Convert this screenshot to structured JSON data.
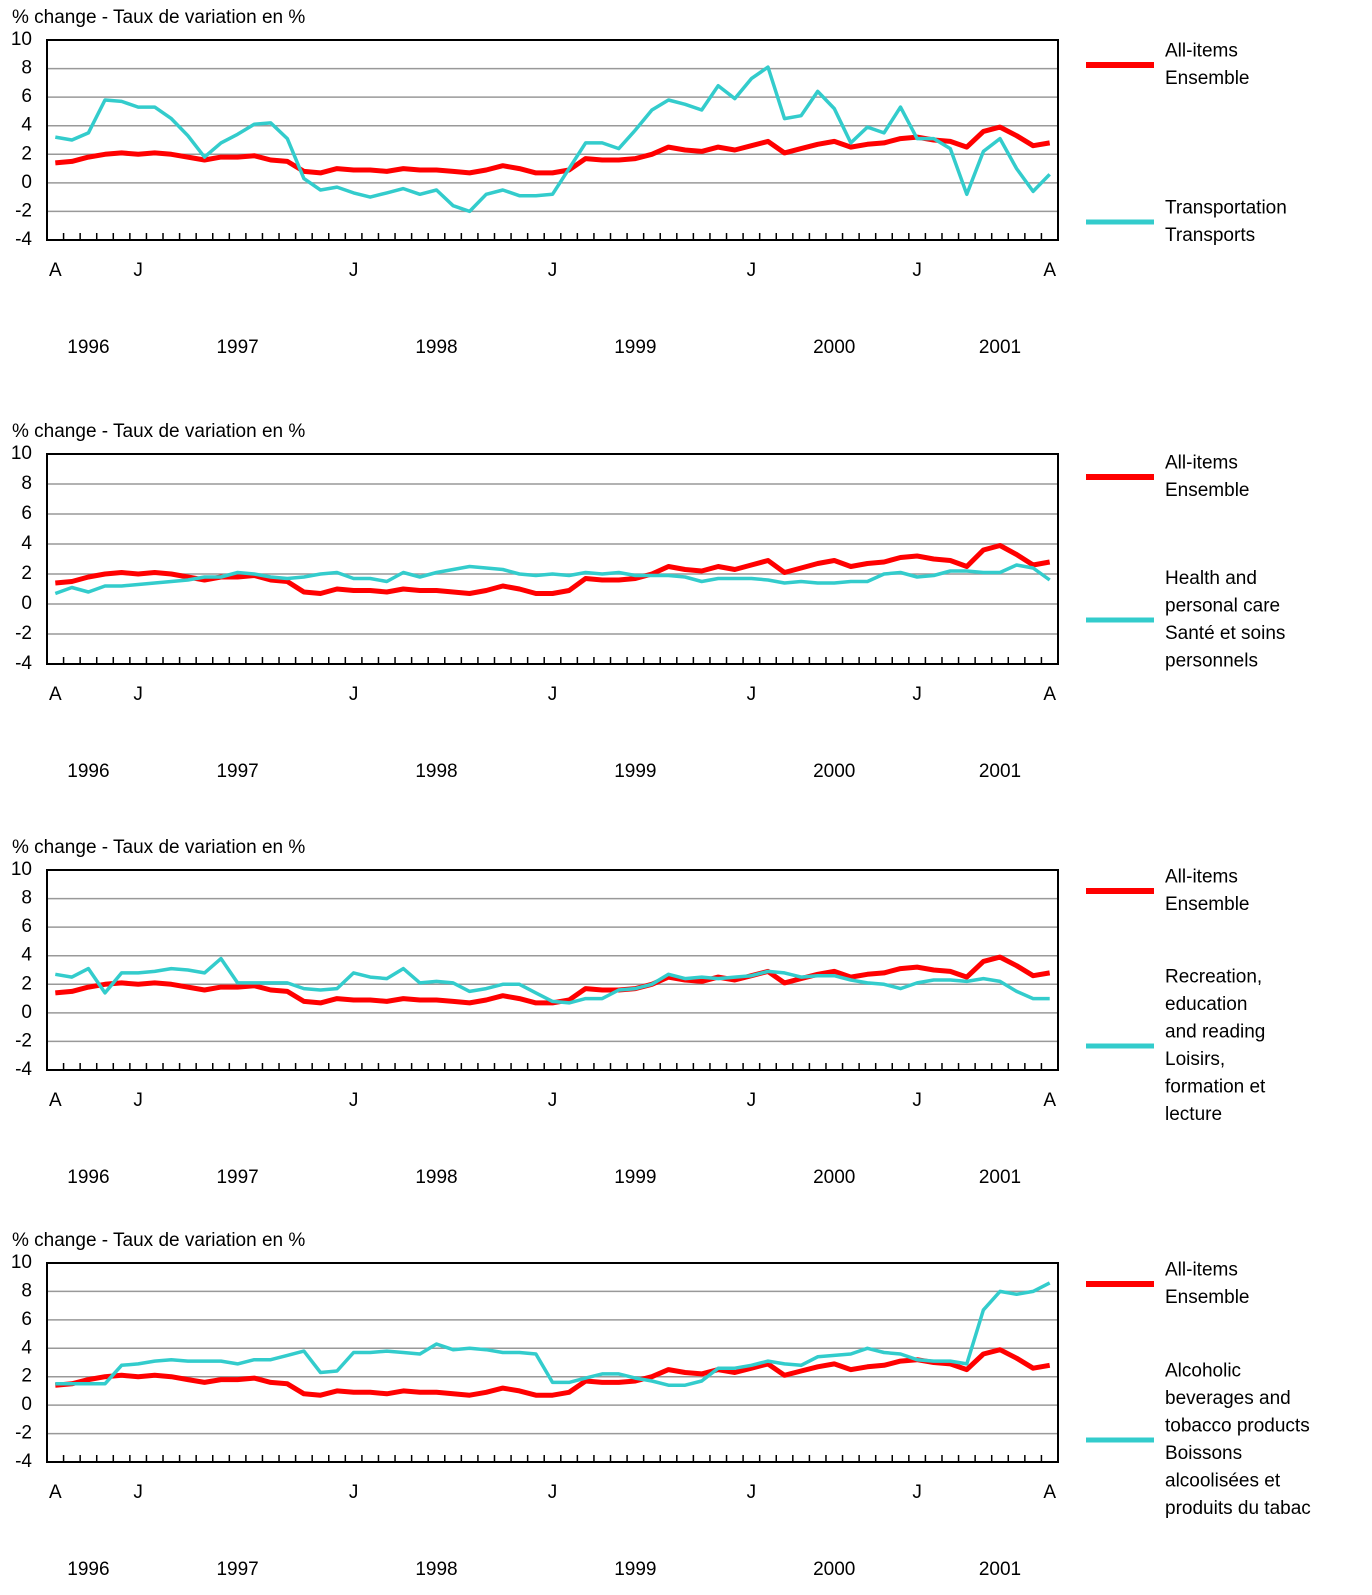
{
  "chart_data": [
    {
      "type": "line",
      "ylabel": "% change - Taux de variation en %",
      "categories": [
        "A",
        null,
        null,
        null,
        null,
        "J",
        null,
        null,
        null,
        null,
        null,
        null,
        null,
        null,
        null,
        null,
        null,
        null,
        "J",
        null,
        null,
        null,
        null,
        null,
        null,
        null,
        null,
        null,
        null,
        null,
        "J",
        null,
        null,
        null,
        null,
        null,
        null,
        null,
        null,
        null,
        null,
        null,
        "J",
        null,
        null,
        null,
        null,
        null,
        null,
        null,
        null,
        null,
        "J",
        null,
        null,
        null,
        null,
        null,
        null,
        null,
        "A"
      ],
      "year_labels": [
        null,
        null,
        "1996",
        null,
        null,
        null,
        null,
        null,
        null,
        null,
        null,
        "1997",
        null,
        null,
        null,
        null,
        null,
        null,
        null,
        null,
        null,
        null,
        null,
        "1998",
        null,
        null,
        null,
        null,
        null,
        null,
        null,
        null,
        null,
        null,
        null,
        "1999",
        null,
        null,
        null,
        null,
        null,
        null,
        null,
        null,
        null,
        null,
        null,
        "2000",
        null,
        null,
        null,
        null,
        null,
        null,
        null,
        null,
        null,
        "2001",
        null,
        null,
        null
      ],
      "ylim": [
        -4,
        10
      ],
      "yticks": [
        -4,
        -2,
        0,
        2,
        4,
        6,
        8,
        10
      ],
      "grid": true,
      "series": [
        {
          "name": [
            "All-items",
            "Ensemble"
          ],
          "color": "#ff0000",
          "values": [
            1.4,
            1.5,
            1.8,
            2.0,
            2.1,
            2.0,
            2.1,
            2.0,
            1.8,
            1.6,
            1.8,
            1.8,
            1.9,
            1.6,
            1.5,
            0.8,
            0.7,
            1.0,
            0.9,
            0.9,
            0.8,
            1.0,
            0.9,
            0.9,
            0.8,
            0.7,
            0.9,
            1.2,
            1.0,
            0.7,
            0.7,
            0.9,
            1.7,
            1.6,
            1.6,
            1.7,
            2.0,
            2.5,
            2.3,
            2.2,
            2.5,
            2.3,
            2.6,
            2.9,
            2.1,
            2.4,
            2.7,
            2.9,
            2.5,
            2.7,
            2.8,
            3.1,
            3.2,
            3.0,
            2.9,
            2.5,
            3.6,
            3.9,
            3.3,
            2.6,
            2.8
          ]
        },
        {
          "name": [
            "Transportation",
            "Transports"
          ],
          "color": "#33cccc",
          "values": [
            3.2,
            3.0,
            3.5,
            5.8,
            5.7,
            5.3,
            5.3,
            4.5,
            3.3,
            1.8,
            2.8,
            3.4,
            4.1,
            4.2,
            3.1,
            0.3,
            -0.5,
            -0.3,
            -0.7,
            -1.0,
            -0.7,
            -0.4,
            -0.8,
            -0.5,
            -1.6,
            -2.0,
            -0.8,
            -0.5,
            -0.9,
            -0.9,
            -0.8,
            1.0,
            2.8,
            2.8,
            2.4,
            3.7,
            5.1,
            5.8,
            5.5,
            5.1,
            6.8,
            5.9,
            7.3,
            8.1,
            4.5,
            4.7,
            6.4,
            5.2,
            2.8,
            3.9,
            3.5,
            5.3,
            3.1,
            3.1,
            2.4,
            -0.8,
            2.2,
            3.1,
            1.0,
            -0.6,
            0.6
          ]
        }
      ]
    },
    {
      "type": "line",
      "ylabel": "% change - Taux de variation en %",
      "categories": [
        "A",
        null,
        null,
        null,
        null,
        "J",
        null,
        null,
        null,
        null,
        null,
        null,
        null,
        null,
        null,
        null,
        null,
        null,
        "J",
        null,
        null,
        null,
        null,
        null,
        null,
        null,
        null,
        null,
        null,
        null,
        "J",
        null,
        null,
        null,
        null,
        null,
        null,
        null,
        null,
        null,
        null,
        null,
        "J",
        null,
        null,
        null,
        null,
        null,
        null,
        null,
        null,
        null,
        "J",
        null,
        null,
        null,
        null,
        null,
        null,
        null,
        "A"
      ],
      "year_labels": [
        null,
        null,
        "1996",
        null,
        null,
        null,
        null,
        null,
        null,
        null,
        null,
        "1997",
        null,
        null,
        null,
        null,
        null,
        null,
        null,
        null,
        null,
        null,
        null,
        "1998",
        null,
        null,
        null,
        null,
        null,
        null,
        null,
        null,
        null,
        null,
        null,
        "1999",
        null,
        null,
        null,
        null,
        null,
        null,
        null,
        null,
        null,
        null,
        null,
        "2000",
        null,
        null,
        null,
        null,
        null,
        null,
        null,
        null,
        null,
        "2001",
        null,
        null,
        null
      ],
      "ylim": [
        -4,
        10
      ],
      "yticks": [
        -4,
        -2,
        0,
        2,
        4,
        6,
        8,
        10
      ],
      "grid": true,
      "series": [
        {
          "name": [
            "All-items",
            "Ensemble"
          ],
          "color": "#ff0000",
          "values": [
            1.4,
            1.5,
            1.8,
            2.0,
            2.1,
            2.0,
            2.1,
            2.0,
            1.8,
            1.6,
            1.8,
            1.8,
            1.9,
            1.6,
            1.5,
            0.8,
            0.7,
            1.0,
            0.9,
            0.9,
            0.8,
            1.0,
            0.9,
            0.9,
            0.8,
            0.7,
            0.9,
            1.2,
            1.0,
            0.7,
            0.7,
            0.9,
            1.7,
            1.6,
            1.6,
            1.7,
            2.0,
            2.5,
            2.3,
            2.2,
            2.5,
            2.3,
            2.6,
            2.9,
            2.1,
            2.4,
            2.7,
            2.9,
            2.5,
            2.7,
            2.8,
            3.1,
            3.2,
            3.0,
            2.9,
            2.5,
            3.6,
            3.9,
            3.3,
            2.6,
            2.8
          ]
        },
        {
          "name": [
            "Health and",
            "personal care",
            "Santé et soins",
            "personnels"
          ],
          "color": "#33cccc",
          "values": [
            0.7,
            1.1,
            0.8,
            1.2,
            1.2,
            1.3,
            1.4,
            1.5,
            1.6,
            1.8,
            1.8,
            2.1,
            2.0,
            1.8,
            1.7,
            1.8,
            2.0,
            2.1,
            1.7,
            1.7,
            1.5,
            2.1,
            1.8,
            2.1,
            2.3,
            2.5,
            2.4,
            2.3,
            2.0,
            1.9,
            2.0,
            1.9,
            2.1,
            2.0,
            2.1,
            1.9,
            1.9,
            1.9,
            1.8,
            1.5,
            1.7,
            1.7,
            1.7,
            1.6,
            1.4,
            1.5,
            1.4,
            1.4,
            1.5,
            1.5,
            2.0,
            2.1,
            1.8,
            1.9,
            2.2,
            2.2,
            2.1,
            2.1,
            2.6,
            2.4,
            1.6
          ]
        }
      ]
    },
    {
      "type": "line",
      "ylabel": "% change - Taux de variation en %",
      "categories": [
        "A",
        null,
        null,
        null,
        null,
        "J",
        null,
        null,
        null,
        null,
        null,
        null,
        null,
        null,
        null,
        null,
        null,
        null,
        "J",
        null,
        null,
        null,
        null,
        null,
        null,
        null,
        null,
        null,
        null,
        null,
        "J",
        null,
        null,
        null,
        null,
        null,
        null,
        null,
        null,
        null,
        null,
        null,
        "J",
        null,
        null,
        null,
        null,
        null,
        null,
        null,
        null,
        null,
        "J",
        null,
        null,
        null,
        null,
        null,
        null,
        null,
        "A"
      ],
      "year_labels": [
        null,
        null,
        "1996",
        null,
        null,
        null,
        null,
        null,
        null,
        null,
        null,
        "1997",
        null,
        null,
        null,
        null,
        null,
        null,
        null,
        null,
        null,
        null,
        null,
        "1998",
        null,
        null,
        null,
        null,
        null,
        null,
        null,
        null,
        null,
        null,
        null,
        "1999",
        null,
        null,
        null,
        null,
        null,
        null,
        null,
        null,
        null,
        null,
        null,
        "2000",
        null,
        null,
        null,
        null,
        null,
        null,
        null,
        null,
        null,
        "2001",
        null,
        null,
        null
      ],
      "ylim": [
        -4,
        10
      ],
      "yticks": [
        -4,
        -2,
        0,
        2,
        4,
        6,
        8,
        10
      ],
      "grid": true,
      "series": [
        {
          "name": [
            "All-items",
            "Ensemble"
          ],
          "color": "#ff0000",
          "values": [
            1.4,
            1.5,
            1.8,
            2.0,
            2.1,
            2.0,
            2.1,
            2.0,
            1.8,
            1.6,
            1.8,
            1.8,
            1.9,
            1.6,
            1.5,
            0.8,
            0.7,
            1.0,
            0.9,
            0.9,
            0.8,
            1.0,
            0.9,
            0.9,
            0.8,
            0.7,
            0.9,
            1.2,
            1.0,
            0.7,
            0.7,
            0.9,
            1.7,
            1.6,
            1.6,
            1.7,
            2.0,
            2.5,
            2.3,
            2.2,
            2.5,
            2.3,
            2.6,
            2.9,
            2.1,
            2.4,
            2.7,
            2.9,
            2.5,
            2.7,
            2.8,
            3.1,
            3.2,
            3.0,
            2.9,
            2.5,
            3.6,
            3.9,
            3.3,
            2.6,
            2.8
          ]
        },
        {
          "name": [
            "Recreation,",
            "education",
            "and reading",
            "Loisirs,",
            "formation et",
            "lecture"
          ],
          "color": "#33cccc",
          "values": [
            2.7,
            2.5,
            3.1,
            1.4,
            2.8,
            2.8,
            2.9,
            3.1,
            3.0,
            2.8,
            3.8,
            2.1,
            2.1,
            2.1,
            2.1,
            1.7,
            1.6,
            1.7,
            2.8,
            2.5,
            2.4,
            3.1,
            2.1,
            2.2,
            2.1,
            1.5,
            1.7,
            2.0,
            2.0,
            1.4,
            0.8,
            0.7,
            1.0,
            1.0,
            1.6,
            1.7,
            2.0,
            2.7,
            2.4,
            2.5,
            2.4,
            2.5,
            2.6,
            2.9,
            2.8,
            2.5,
            2.6,
            2.6,
            2.3,
            2.1,
            2.0,
            1.7,
            2.1,
            2.3,
            2.3,
            2.2,
            2.4,
            2.2,
            1.5,
            1.0,
            1.0
          ]
        }
      ]
    },
    {
      "type": "line",
      "ylabel": "% change - Taux de variation en %",
      "categories": [
        "A",
        null,
        null,
        null,
        null,
        "J",
        null,
        null,
        null,
        null,
        null,
        null,
        null,
        null,
        null,
        null,
        null,
        null,
        "J",
        null,
        null,
        null,
        null,
        null,
        null,
        null,
        null,
        null,
        null,
        null,
        "J",
        null,
        null,
        null,
        null,
        null,
        null,
        null,
        null,
        null,
        null,
        null,
        "J",
        null,
        null,
        null,
        null,
        null,
        null,
        null,
        null,
        null,
        "J",
        null,
        null,
        null,
        null,
        null,
        null,
        null,
        "A"
      ],
      "year_labels": [
        null,
        null,
        "1996",
        null,
        null,
        null,
        null,
        null,
        null,
        null,
        null,
        "1997",
        null,
        null,
        null,
        null,
        null,
        null,
        null,
        null,
        null,
        null,
        null,
        "1998",
        null,
        null,
        null,
        null,
        null,
        null,
        null,
        null,
        null,
        null,
        null,
        "1999",
        null,
        null,
        null,
        null,
        null,
        null,
        null,
        null,
        null,
        null,
        null,
        "2000",
        null,
        null,
        null,
        null,
        null,
        null,
        null,
        null,
        null,
        "2001",
        null,
        null,
        null
      ],
      "ylim": [
        -4,
        10
      ],
      "yticks": [
        -4,
        -2,
        0,
        2,
        4,
        6,
        8,
        10
      ],
      "grid": true,
      "series": [
        {
          "name": [
            "All-items",
            "Ensemble"
          ],
          "color": "#ff0000",
          "values": [
            1.4,
            1.5,
            1.8,
            2.0,
            2.1,
            2.0,
            2.1,
            2.0,
            1.8,
            1.6,
            1.8,
            1.8,
            1.9,
            1.6,
            1.5,
            0.8,
            0.7,
            1.0,
            0.9,
            0.9,
            0.8,
            1.0,
            0.9,
            0.9,
            0.8,
            0.7,
            0.9,
            1.2,
            1.0,
            0.7,
            0.7,
            0.9,
            1.7,
            1.6,
            1.6,
            1.7,
            2.0,
            2.5,
            2.3,
            2.2,
            2.5,
            2.3,
            2.6,
            2.9,
            2.1,
            2.4,
            2.7,
            2.9,
            2.5,
            2.7,
            2.8,
            3.1,
            3.2,
            3.0,
            2.9,
            2.5,
            3.6,
            3.9,
            3.3,
            2.6,
            2.8
          ]
        },
        {
          "name": [
            "Alcoholic",
            "beverages and",
            "tobacco products",
            "Boissons",
            "alcoolisées et",
            "produits du tabac"
          ],
          "color": "#33cccc",
          "values": [
            1.5,
            1.5,
            1.5,
            1.5,
            2.8,
            2.9,
            3.1,
            3.2,
            3.1,
            3.1,
            3.1,
            2.9,
            3.2,
            3.2,
            3.5,
            3.8,
            2.3,
            2.4,
            3.7,
            3.7,
            3.8,
            3.7,
            3.6,
            4.3,
            3.9,
            4.0,
            3.9,
            3.7,
            3.7,
            3.6,
            1.6,
            1.6,
            1.9,
            2.2,
            2.2,
            1.9,
            1.7,
            1.4,
            1.4,
            1.7,
            2.6,
            2.6,
            2.8,
            3.1,
            2.9,
            2.8,
            3.4,
            3.5,
            3.6,
            4.0,
            3.7,
            3.6,
            3.2,
            3.1,
            3.1,
            2.9,
            6.7,
            8.0,
            7.8,
            8.0,
            8.6
          ]
        }
      ]
    }
  ]
}
